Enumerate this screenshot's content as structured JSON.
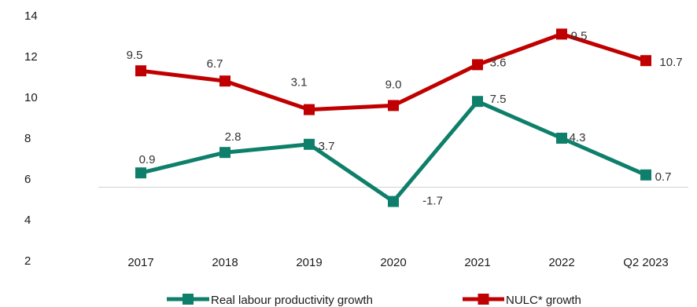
{
  "chart_data": {
    "type": "line",
    "categories": [
      "2017",
      "2018",
      "2019",
      "2020",
      "2021",
      "2022",
      "Q2 2023"
    ],
    "y_ticks": [
      "2",
      "4",
      "6",
      "8",
      "10",
      "12",
      "14"
    ],
    "ylim": [
      2,
      14
    ],
    "reference_line": 5.6,
    "grid": false,
    "legend_position": "bottom",
    "series": [
      {
        "name": "Real labour productivity growth",
        "color": "#0e7f6a",
        "marker": "square",
        "values": [
          6.3,
          7.3,
          7.7,
          4.9,
          9.8,
          8.0,
          6.2
        ],
        "labels": [
          "0.9",
          "2.8",
          "3.7",
          "-1.7",
          "7.5",
          "4.3",
          "0.7"
        ]
      },
      {
        "name": "NULC* growth",
        "color": "#c00000",
        "marker": "square",
        "values": [
          11.3,
          10.8,
          9.4,
          9.6,
          11.6,
          13.1,
          11.8
        ],
        "labels": [
          "9.5",
          "6.7",
          "3.1",
          "9.0",
          "3.6",
          "9.5",
          "10.7"
        ]
      }
    ]
  }
}
